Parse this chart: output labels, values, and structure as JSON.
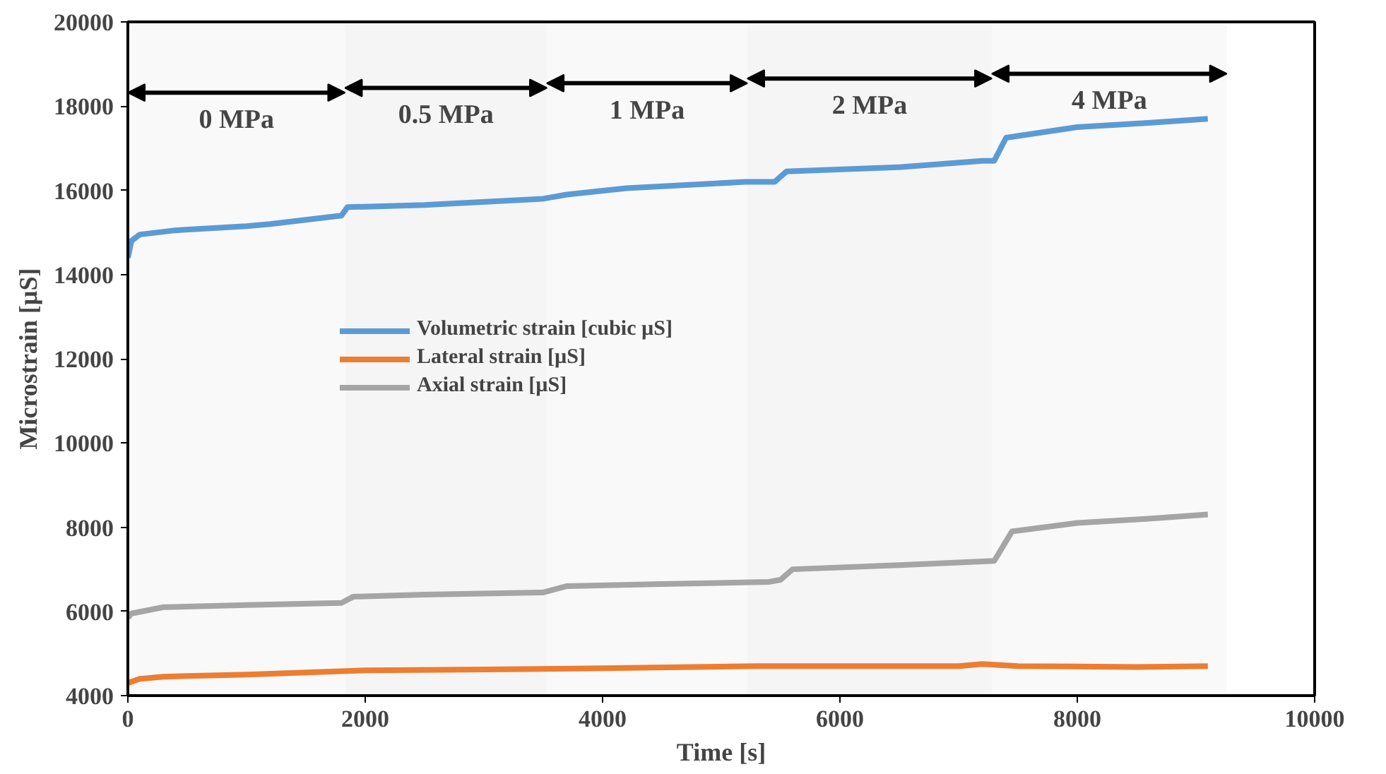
{
  "chart_data": {
    "type": "line",
    "xlabel": "Time [s]",
    "ylabel": "Microstrain [µS]",
    "xlim": [
      0,
      10000
    ],
    "ylim": [
      4000,
      20000
    ],
    "xticks": [
      0,
      2000,
      4000,
      6000,
      8000,
      10000
    ],
    "yticks": [
      4000,
      6000,
      8000,
      10000,
      12000,
      14000,
      16000,
      18000,
      20000
    ],
    "grid": false,
    "legend": "left",
    "marker": "none",
    "line_style": "solid",
    "series": [
      {
        "name": "Volumetric strain [cubic µS]",
        "color": "#5b9bd5",
        "x": [
          0,
          30,
          100,
          400,
          1000,
          1200,
          1800,
          1850,
          2500,
          3500,
          3700,
          4200,
          5200,
          5450,
          5550,
          6500,
          7200,
          7300,
          7400,
          8000,
          8600,
          9100
        ],
        "values": [
          14400,
          14800,
          14950,
          15050,
          15150,
          15200,
          15400,
          15600,
          15650,
          15800,
          15900,
          16050,
          16200,
          16200,
          16450,
          16550,
          16700,
          16700,
          17250,
          17500,
          17600,
          17700
        ]
      },
      {
        "name": "Lateral strain [µS]",
        "color": "#ed7d31",
        "x": [
          0,
          100,
          300,
          1000,
          1500,
          2000,
          3000,
          4000,
          5300,
          6000,
          7000,
          7200,
          7500,
          8500,
          9100
        ],
        "values": [
          4300,
          4400,
          4450,
          4500,
          4550,
          4600,
          4620,
          4650,
          4700,
          4700,
          4700,
          4750,
          4700,
          4680,
          4700
        ]
      },
      {
        "name": "Axial strain [µS]",
        "color": "#a5a5a5",
        "x": [
          0,
          30,
          300,
          1000,
          1800,
          1900,
          2500,
          3500,
          3700,
          4500,
          5400,
          5500,
          5600,
          6500,
          7300,
          7450,
          8000,
          8600,
          9100
        ],
        "values": [
          5850,
          5950,
          6100,
          6150,
          6200,
          6350,
          6400,
          6450,
          6600,
          6650,
          6700,
          6750,
          7000,
          7100,
          7200,
          7900,
          8100,
          8200,
          8300
        ]
      }
    ],
    "bands": [
      {
        "axis": "x",
        "from": 0,
        "to": 1830,
        "label": "0 MPa"
      },
      {
        "axis": "x",
        "from": 1830,
        "to": 3530,
        "label": "0.5 MPa"
      },
      {
        "axis": "x",
        "from": 3530,
        "to": 5220,
        "label": "1 MPa"
      },
      {
        "axis": "x",
        "from": 5220,
        "to": 7280,
        "label": "2 MPa"
      },
      {
        "axis": "x",
        "from": 7280,
        "to": 9260,
        "label": "4 MPa"
      }
    ]
  }
}
